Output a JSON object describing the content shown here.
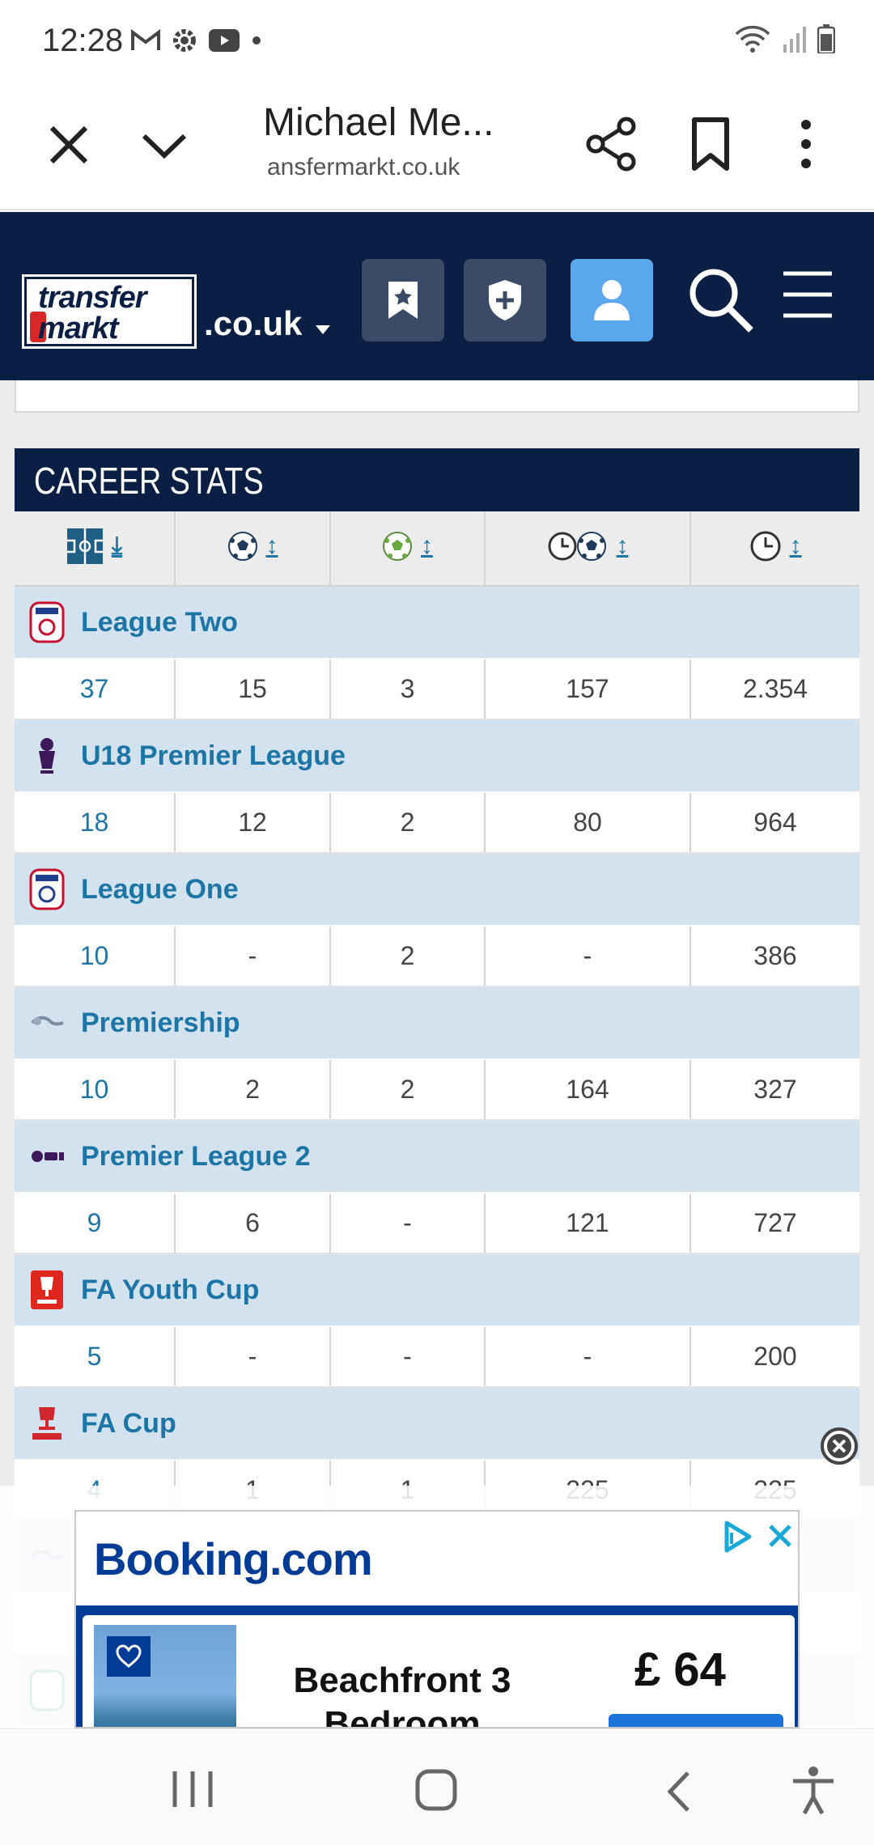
{
  "status_bar": {
    "time": "12:28"
  },
  "browser": {
    "title": "Michael Me...",
    "url": "ansfermarkt.co.uk"
  },
  "site": {
    "logo_line1": "transfer",
    "logo_line2": "markt",
    "domain": ".co.uk"
  },
  "career_stats": {
    "heading": "CAREER STATS",
    "sort_arrows": [
      "⤓",
      "↕",
      "↕",
      "↕",
      "↕"
    ],
    "competitions": [
      {
        "name": "League Two",
        "logo": "league-two-logo",
        "values": [
          "37",
          "15",
          "3",
          "157",
          "2.354"
        ]
      },
      {
        "name": "U18 Premier League",
        "logo": "premier-league-logo",
        "values": [
          "18",
          "12",
          "2",
          "80",
          "964"
        ]
      },
      {
        "name": "League One",
        "logo": "league-one-logo",
        "values": [
          "10",
          "-",
          "2",
          "-",
          "386"
        ]
      },
      {
        "name": "Premiership",
        "logo": "premiership-logo",
        "values": [
          "10",
          "2",
          "2",
          "164",
          "327"
        ]
      },
      {
        "name": "Premier League 2",
        "logo": "premier-league-2-logo",
        "values": [
          "9",
          "6",
          "-",
          "121",
          "727"
        ]
      },
      {
        "name": "FA Youth Cup",
        "logo": "fa-youth-cup-logo",
        "values": [
          "5",
          "-",
          "-",
          "-",
          "200"
        ]
      },
      {
        "name": "FA Cup",
        "logo": "fa-cup-logo",
        "values": [
          "4",
          "1",
          "1",
          "225",
          "225"
        ]
      }
    ]
  },
  "ad": {
    "brand": "Booking.com",
    "listing_line1": "Beachfront 3",
    "listing_line2": "Bedroom House",
    "price": "£ 64"
  },
  "colors": {
    "header_navy": "#0b1f45",
    "link_blue": "#1d75a5",
    "competition_row": "#d2e2ee",
    "booking_blue": "#003b95"
  }
}
